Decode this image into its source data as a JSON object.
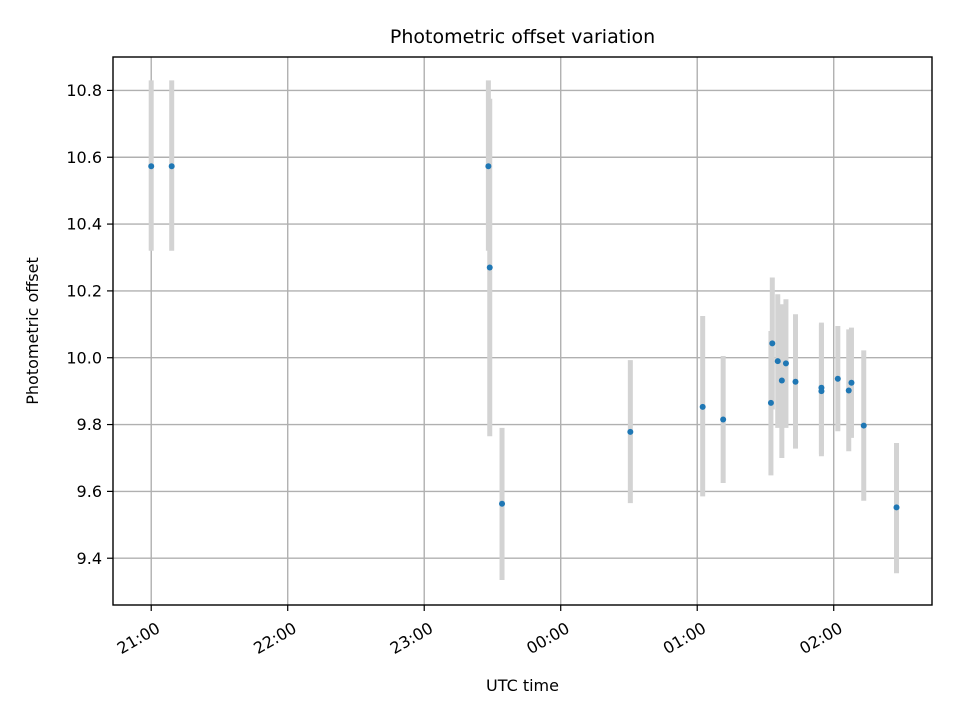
{
  "chart_data": {
    "type": "scatter",
    "title": "Photometric offset variation",
    "xlabel": "UTC time",
    "ylabel": "Photometric offset",
    "x_unit": "hours since 21:00 UTC",
    "xlim": [
      -0.28,
      5.72
    ],
    "ylim": [
      9.26,
      10.9
    ],
    "x_ticks": [
      {
        "value": 0,
        "label": "21:00"
      },
      {
        "value": 1,
        "label": "22:00"
      },
      {
        "value": 2,
        "label": "23:00"
      },
      {
        "value": 3,
        "label": "00:00"
      },
      {
        "value": 4,
        "label": "01:00"
      },
      {
        "value": 5,
        "label": "02:00"
      }
    ],
    "y_ticks": [
      {
        "value": 9.4,
        "label": "9.4"
      },
      {
        "value": 9.6,
        "label": "9.6"
      },
      {
        "value": 9.8,
        "label": "9.8"
      },
      {
        "value": 10.0,
        "label": "10.0"
      },
      {
        "value": 10.2,
        "label": "10.2"
      },
      {
        "value": 10.4,
        "label": "10.4"
      },
      {
        "value": 10.6,
        "label": "10.6"
      },
      {
        "value": 10.8,
        "label": "10.8"
      }
    ],
    "grid": true,
    "colors": {
      "marker": "#1f77b4",
      "errorbar": "#d3d3d3"
    },
    "series": [
      {
        "points": [
          {
            "x": 0.0,
            "y": 10.573,
            "ylow": 10.32,
            "yhigh": 10.83
          },
          {
            "x": 0.15,
            "y": 10.573,
            "ylow": 10.32,
            "yhigh": 10.83
          },
          {
            "x": 2.47,
            "y": 10.573,
            "ylow": 10.32,
            "yhigh": 10.83
          },
          {
            "x": 2.48,
            "y": 10.27,
            "ylow": 9.765,
            "yhigh": 10.775
          },
          {
            "x": 2.57,
            "y": 9.563,
            "ylow": 9.335,
            "yhigh": 9.79
          },
          {
            "x": 3.51,
            "y": 9.778,
            "ylow": 9.565,
            "yhigh": 9.993
          },
          {
            "x": 4.04,
            "y": 9.853,
            "ylow": 9.585,
            "yhigh": 10.125
          },
          {
            "x": 4.19,
            "y": 9.815,
            "ylow": 9.625,
            "yhigh": 10.005
          },
          {
            "x": 4.54,
            "y": 9.865,
            "ylow": 9.648,
            "yhigh": 10.08
          },
          {
            "x": 4.55,
            "y": 10.043,
            "ylow": 9.845,
            "yhigh": 10.24
          },
          {
            "x": 4.59,
            "y": 9.99,
            "ylow": 9.79,
            "yhigh": 10.19
          },
          {
            "x": 4.62,
            "y": 9.932,
            "ylow": 9.7,
            "yhigh": 10.16
          },
          {
            "x": 4.65,
            "y": 9.983,
            "ylow": 9.79,
            "yhigh": 10.175
          },
          {
            "x": 4.72,
            "y": 9.928,
            "ylow": 9.728,
            "yhigh": 10.13
          },
          {
            "x": 4.91,
            "y": 9.91,
            "ylow": 9.712,
            "yhigh": 10.105
          },
          {
            "x": 4.91,
            "y": 9.9,
            "ylow": 9.705,
            "yhigh": 10.1
          },
          {
            "x": 5.03,
            "y": 9.937,
            "ylow": 9.78,
            "yhigh": 10.095
          },
          {
            "x": 5.11,
            "y": 9.902,
            "ylow": 9.72,
            "yhigh": 10.085
          },
          {
            "x": 5.13,
            "y": 9.925,
            "ylow": 9.76,
            "yhigh": 10.09
          },
          {
            "x": 5.22,
            "y": 9.797,
            "ylow": 9.572,
            "yhigh": 10.022
          },
          {
            "x": 5.46,
            "y": 9.552,
            "ylow": 9.355,
            "yhigh": 9.745
          }
        ]
      }
    ]
  }
}
